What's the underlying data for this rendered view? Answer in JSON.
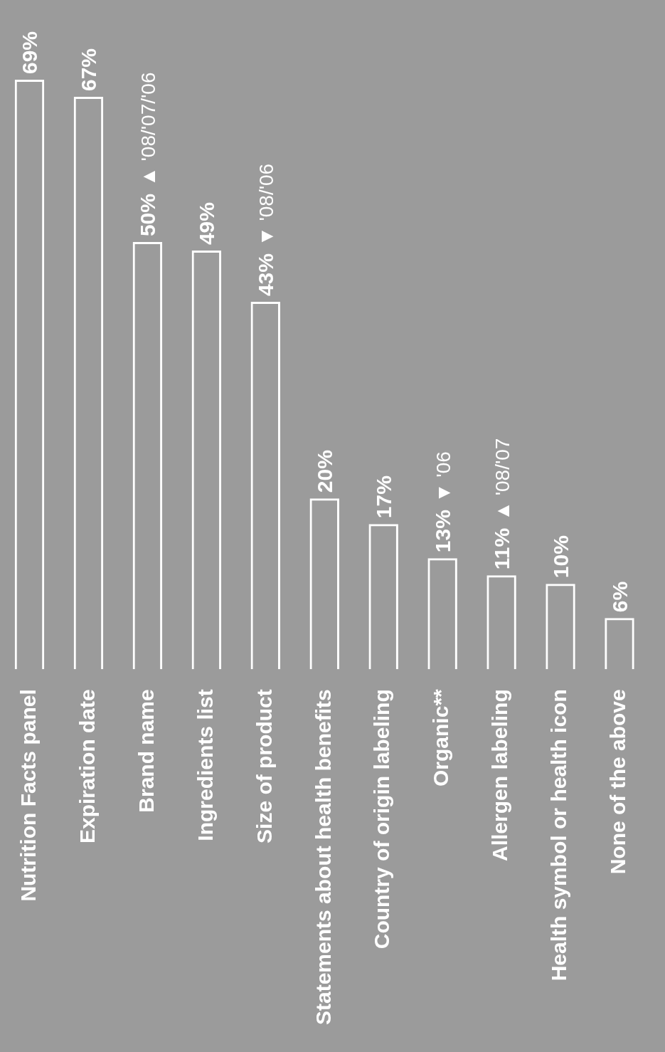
{
  "chart_data": {
    "type": "bar",
    "categories": [
      "Nutrition Facts panel",
      "Expiration date",
      "Brand name",
      "Ingredients list",
      "Size of product",
      "Statements about health benefits",
      "Country of origin labeling",
      "Organic**",
      "Allergen labeling",
      "Health symbol or health icon",
      "None of the above"
    ],
    "values": [
      69,
      67,
      50,
      49,
      43,
      20,
      17,
      13,
      11,
      10,
      6
    ],
    "value_labels": [
      "69%",
      "67%",
      "50%",
      "49%",
      "43%",
      "20%",
      "17%",
      "13%",
      "11%",
      "10%",
      "6%"
    ],
    "color": "#ffffff",
    "annotations": [
      {
        "text": "▲ '08/'07/'06",
        "x": "Brand name",
        "y": 50
      },
      {
        "text": "▼ '08/'06",
        "x": "Size of product",
        "y": 43
      },
      {
        "text": "▼ '06",
        "x": "Organic**",
        "y": 13
      },
      {
        "text": "▲ '08/'07",
        "x": "Allergen labeling",
        "y": 11
      }
    ],
    "grid": false,
    "legend": false
  }
}
